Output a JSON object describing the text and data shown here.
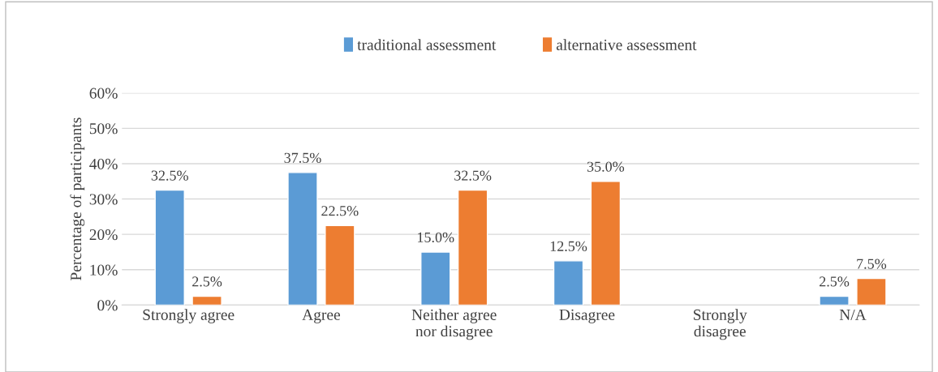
{
  "chart_data": {
    "type": "bar",
    "ylabel": "Percentage of participants",
    "categories": [
      "Strongly agree",
      "Agree",
      "Neither agree\nnor disagree",
      "Disagree",
      "Strongly\ndisagree",
      "N/A"
    ],
    "series": [
      {
        "name": "traditional assessment",
        "color": "#5b9bd5",
        "values": [
          32.5,
          37.5,
          15.0,
          12.5,
          null,
          2.5
        ],
        "value_labels": [
          "32.5%",
          "37.5%",
          "15.0%",
          "12.5%",
          null,
          "2.5%"
        ]
      },
      {
        "name": "alternative assessment",
        "color": "#ed7d31",
        "values": [
          2.5,
          22.5,
          32.5,
          35.0,
          null,
          7.5
        ],
        "value_labels": [
          "2.5%",
          "22.5%",
          "32.5%",
          "35.0%",
          null,
          "7.5%"
        ]
      }
    ],
    "ylim": [
      0,
      60
    ],
    "yticks": [
      {
        "value": 0,
        "label": "0%"
      },
      {
        "value": 10,
        "label": "10%"
      },
      {
        "value": 20,
        "label": "20%"
      },
      {
        "value": 30,
        "label": "30%"
      },
      {
        "value": 40,
        "label": "40%"
      },
      {
        "value": 50,
        "label": "50%"
      },
      {
        "value": 60,
        "label": "60%"
      }
    ],
    "grid": "y",
    "legend": "top"
  }
}
